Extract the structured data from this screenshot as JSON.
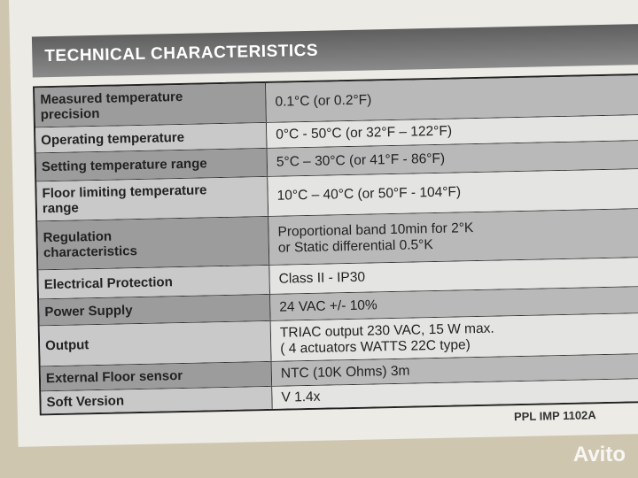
{
  "header": {
    "title": "TECHNICAL CHARACTERISTICS"
  },
  "table": {
    "rows": [
      [
        [
          "Measured temperature",
          "precision"
        ],
        [
          "0.1°C (or 0.2°F)"
        ]
      ],
      [
        [
          "Operating temperature"
        ],
        [
          "0°C - 50°C (or 32°F – 122°F)"
        ]
      ],
      [
        [
          "Setting temperature range"
        ],
        [
          "5°C – 30°C (or 41°F - 86°F)"
        ]
      ],
      [
        [
          "Floor limiting temperature",
          "range"
        ],
        [
          "10°C – 40°C (or 50°F - 104°F)"
        ]
      ],
      [
        [
          "Regulation",
          "characteristics"
        ],
        [
          "Proportional band 10min for 2°K",
          "or Static differential 0.5°K"
        ]
      ],
      [
        [
          "Electrical Protection"
        ],
        [
          "Class II  -  IP30"
        ]
      ],
      [
        [
          "Power Supply"
        ],
        [
          "24 VAC +/- 10%"
        ]
      ],
      [
        [
          "Output"
        ],
        [
          "TRIAC output 230 VAC, 15 W max.",
          "( 4 actuators WATTS 22C type)"
        ]
      ],
      [
        [
          "External Floor sensor"
        ],
        [
          "NTC (10K Ohms) 3m"
        ]
      ],
      [
        [
          "Soft Version"
        ],
        [
          "V 1.4x"
        ]
      ]
    ]
  },
  "footer": {
    "reference": "PPL IMP 1102A"
  },
  "watermark": "Avito"
}
